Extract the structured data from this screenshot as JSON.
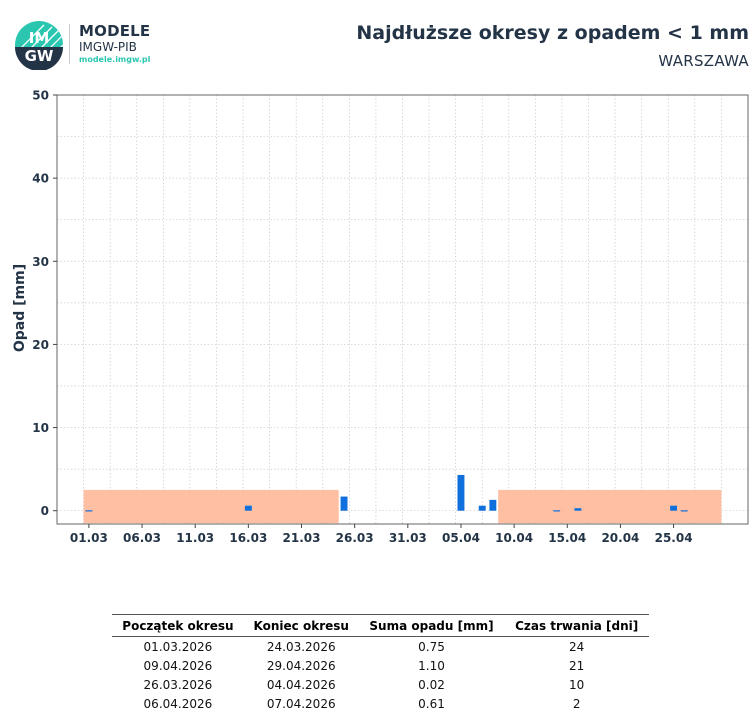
{
  "brand": {
    "logo_text": "IMGW",
    "name": "MODELE",
    "org": "IMGW-PIB",
    "url": "modele.imgw.pl",
    "accent_color": "#2bc6b0",
    "dark_color": "#243447"
  },
  "chart_data": {
    "type": "bar",
    "title": "Najdłuższe okresy z opadem < 1 mm",
    "subtitle": "WARSZAWA",
    "ylabel": "Opad [mm]",
    "xlabel": "",
    "ylim": [
      -1.6,
      50
    ],
    "yticks": [
      0,
      10,
      20,
      30,
      40,
      50
    ],
    "xlim": [
      "2026-02-26",
      "2026-05-02"
    ],
    "xtick_labels": [
      "01.03",
      "06.03",
      "11.03",
      "16.03",
      "21.03",
      "26.03",
      "31.03",
      "05.04",
      "10.04",
      "15.04",
      "20.04",
      "25.04"
    ],
    "grid": true,
    "bar_color": "#0f6fdc",
    "highlight_color": "#ffb899",
    "series": [
      {
        "x": [
          "2026-03-01",
          "2026-03-16",
          "2026-03-25",
          "2026-04-05",
          "2026-04-07",
          "2026-04-08",
          "2026-04-14",
          "2026-04-16",
          "2026-04-25",
          "2026-04-26"
        ],
        "values": [
          0.05,
          0.6,
          1.7,
          4.3,
          0.6,
          1.3,
          0.05,
          0.3,
          0.6,
          0.05
        ]
      }
    ],
    "periods": [
      {
        "start": "2026-03-01",
        "end": "2026-03-24"
      },
      {
        "start": "2026-04-09",
        "end": "2026-04-29"
      }
    ]
  },
  "table": {
    "headers": [
      "Początek okresu",
      "Koniec okresu",
      "Suma opadu [mm]",
      "Czas trwania [dni]"
    ],
    "rows": [
      [
        "01.03.2026",
        "24.03.2026",
        "0.75",
        "24"
      ],
      [
        "09.04.2026",
        "29.04.2026",
        "1.10",
        "21"
      ],
      [
        "26.03.2026",
        "04.04.2026",
        "0.02",
        "10"
      ],
      [
        "06.04.2026",
        "07.04.2026",
        "0.61",
        "2"
      ]
    ]
  }
}
